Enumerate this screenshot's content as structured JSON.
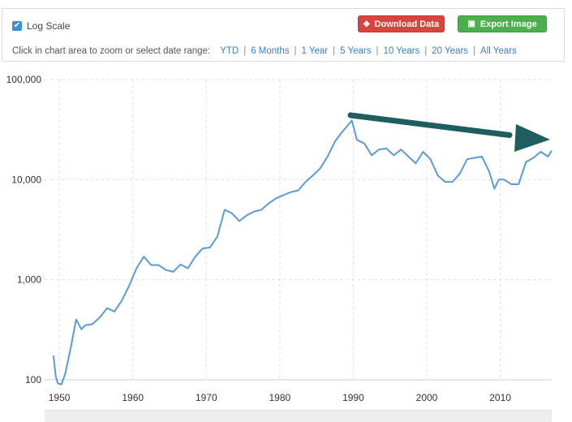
{
  "toolbar": {
    "log_scale_label": "Log Scale",
    "log_scale_checked": true,
    "download_label": "Download Data",
    "export_label": "Export Image",
    "download_color": "#d9443f",
    "export_color": "#4cae4c",
    "range_prompt": "Click in chart area to zoom or select date range:",
    "ranges": [
      "YTD",
      "6 Months",
      "1 Year",
      "5 Years",
      "10 Years",
      "20 Years",
      "All Years"
    ]
  },
  "chart_data": {
    "type": "line",
    "yscale": "log",
    "ylim": [
      100,
      100000
    ],
    "xlim": [
      1948,
      2017
    ],
    "y_ticks": [
      {
        "value": 100,
        "label": "100"
      },
      {
        "value": 1000,
        "label": "1,000"
      },
      {
        "value": 10000,
        "label": "10,000"
      },
      {
        "value": 100000,
        "label": "100,000"
      }
    ],
    "x_ticks": [
      {
        "value": 1950,
        "label": "1950"
      },
      {
        "value": 1960,
        "label": "1960"
      },
      {
        "value": 1970,
        "label": "1970"
      },
      {
        "value": 1980,
        "label": "1980"
      },
      {
        "value": 1990,
        "label": "1990"
      },
      {
        "value": 2000,
        "label": "2000"
      },
      {
        "value": 2010,
        "label": "2010"
      }
    ],
    "grid": true,
    "series_color": "#5b9bd5",
    "arrow_color": "#1f5e5e",
    "series": [
      {
        "x": [
          1949.2,
          1949.5,
          1949.8,
          1950.3,
          1950.8,
          1951.5,
          1952.3,
          1953.0,
          1953.5,
          1954.5,
          1955.5,
          1956.5,
          1957.5,
          1958.5,
          1959.5,
          1960.5,
          1961.5,
          1962.5,
          1963.5,
          1964.5,
          1965.5,
          1966.5,
          1967.5,
          1968.5,
          1969.5,
          1970.5,
          1971.5,
          1972.5,
          1973.5,
          1974.5,
          1975.5,
          1976.5,
          1977.5,
          1978.5,
          1979.5,
          1980.5,
          1981.5,
          1982.5,
          1983.5,
          1984.5,
          1985.5,
          1986.5,
          1987.5,
          1988.5,
          1989.8,
          1990.5,
          1991.5,
          1992.5,
          1993.5,
          1994.5,
          1995.5,
          1996.5,
          1997.5,
          1998.5,
          1999.5,
          2000.5,
          2001.5,
          2002.5,
          2003.5,
          2004.5,
          2005.5,
          2006.5,
          2007.5,
          2008.5,
          2009.2,
          2009.8,
          2010.5,
          2011.5,
          2012.5,
          2013.5,
          2014.5,
          2015.5,
          2016.5,
          2017.0
        ],
        "y": [
          175,
          110,
          92,
          90,
          115,
          200,
          400,
          320,
          350,
          360,
          420,
          520,
          480,
          620,
          870,
          1300,
          1700,
          1400,
          1400,
          1250,
          1200,
          1420,
          1300,
          1700,
          2050,
          2100,
          2700,
          5000,
          4600,
          3850,
          4400,
          4800,
          5000,
          5800,
          6500,
          7000,
          7500,
          7800,
          9500,
          11000,
          13000,
          17000,
          24000,
          30000,
          38900,
          25000,
          23000,
          17500,
          20000,
          20500,
          17500,
          20000,
          17000,
          14500,
          19000,
          16000,
          11000,
          9500,
          9500,
          11500,
          16000,
          16500,
          17000,
          12000,
          8100,
          10000,
          10000,
          9000,
          9000,
          15000,
          16500,
          19000,
          17000,
          19500
        ]
      }
    ]
  }
}
